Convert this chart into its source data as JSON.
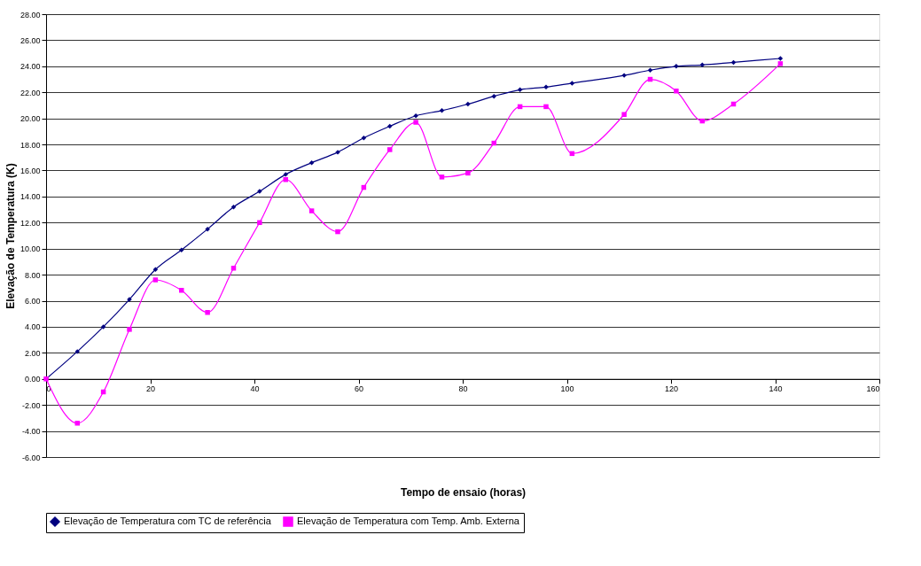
{
  "chart_data": {
    "type": "line",
    "xlabel": "Tempo de ensaio (horas)",
    "ylabel": "Elevação de Temperatura (K)",
    "xlim": [
      0,
      160
    ],
    "xticks": [
      0,
      20,
      40,
      60,
      80,
      100,
      120,
      140,
      160
    ],
    "ylim": [
      -6,
      28
    ],
    "yticks": [
      {
        "value": -6,
        "label": "-6.00"
      },
      {
        "value": -4,
        "label": "-4.00"
      },
      {
        "value": -2,
        "label": "-2.00"
      },
      {
        "value": 0,
        "label": "0.00"
      },
      {
        "value": 2,
        "label": "2.00"
      },
      {
        "value": 4,
        "label": "4.00"
      },
      {
        "value": 6,
        "label": "6.00"
      },
      {
        "value": 8,
        "label": "8.00"
      },
      {
        "value": 10,
        "label": "10.00"
      },
      {
        "value": 12,
        "label": "12.00"
      },
      {
        "value": 14,
        "label": "14.00"
      },
      {
        "value": 16,
        "label": "16.00"
      },
      {
        "value": 18,
        "label": "18.00"
      },
      {
        "value": 20,
        "label": "20.00"
      },
      {
        "value": 22,
        "label": "22.00"
      },
      {
        "value": 24,
        "label": "24.00"
      },
      {
        "value": 26,
        "label": "26.00"
      },
      {
        "value": 28,
        "label": "28.00"
      }
    ],
    "x": [
      0,
      6,
      11,
      16,
      21,
      26,
      31,
      36,
      41,
      46,
      51,
      56,
      61,
      66,
      71,
      76,
      81,
      86,
      91,
      96,
      101,
      111,
      116,
      121,
      126,
      132,
      141
    ],
    "series": [
      {
        "name": "Elevação de Temperatura com TC de referência",
        "color": "#000080",
        "marker": "diamond",
        "values": [
          0,
          2.1,
          4.0,
          6.1,
          8.4,
          9.9,
          11.5,
          13.2,
          14.4,
          15.7,
          16.6,
          17.4,
          18.5,
          19.4,
          20.2,
          20.6,
          21.1,
          21.7,
          22.2,
          22.4,
          22.7,
          23.3,
          23.7,
          24.0,
          24.1,
          24.3,
          24.6
        ]
      },
      {
        "name": "Elevação de Temperatura com Temp. Amb. Externa",
        "color": "#ff00ff",
        "marker": "square",
        "values": [
          0,
          -3.4,
          -1.0,
          3.8,
          7.6,
          6.8,
          5.1,
          8.5,
          12.0,
          15.3,
          12.9,
          11.3,
          14.7,
          17.6,
          19.7,
          15.5,
          15.8,
          18.1,
          20.9,
          20.9,
          17.3,
          20.3,
          23.0,
          22.1,
          19.8,
          21.1,
          24.2
        ]
      }
    ],
    "grid": "y",
    "legend": "bottom",
    "line_style": "solid"
  }
}
